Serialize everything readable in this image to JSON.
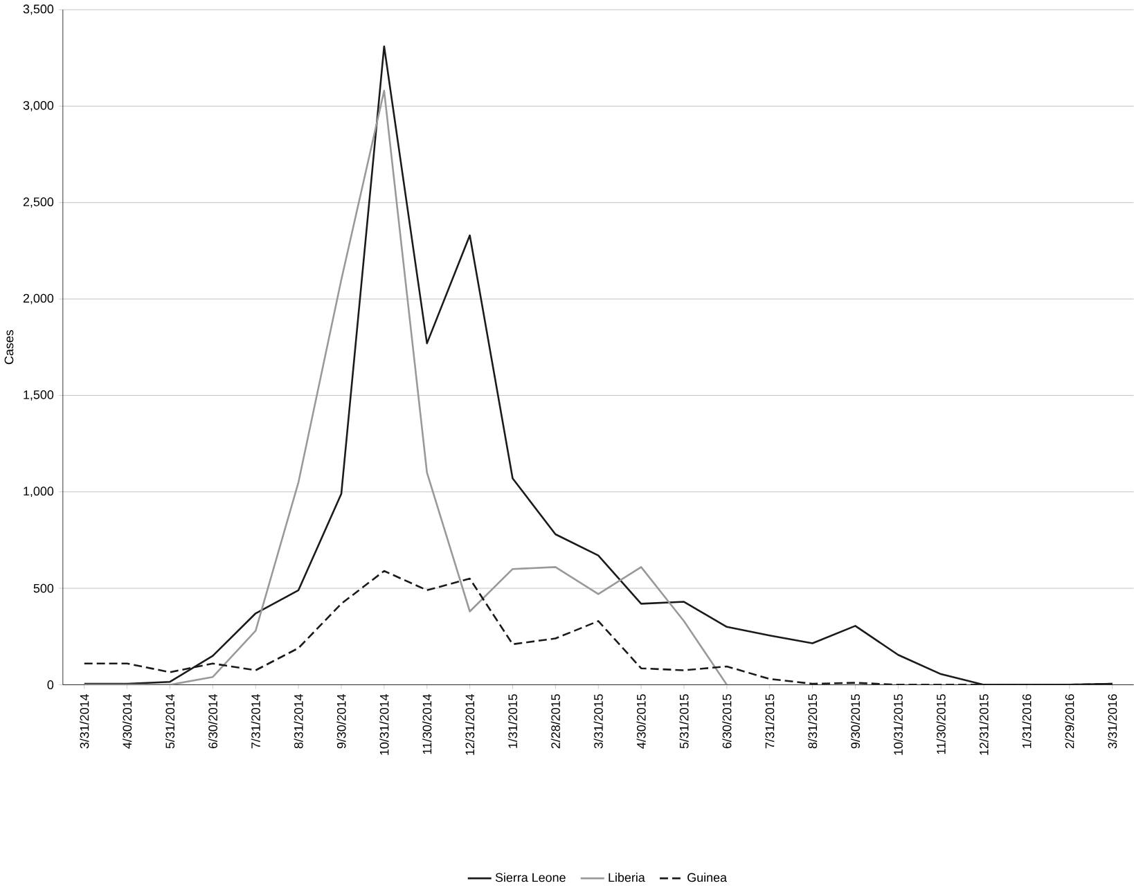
{
  "chart_data": {
    "type": "line",
    "ylabel": "Cases",
    "categories": [
      "3/31/2014",
      "4/30/2014",
      "5/31/2014",
      "6/30/2014",
      "7/31/2014",
      "8/31/2014",
      "9/30/2014",
      "10/31/2014",
      "11/30/2014",
      "12/31/2014",
      "1/31/2015",
      "2/28/2015",
      "3/31/2015",
      "4/30/2015",
      "5/31/2015",
      "6/30/2015",
      "7/31/2015",
      "8/31/2015",
      "9/30/2015",
      "10/31/2015",
      "11/30/2015",
      "12/31/2015",
      "1/31/2016",
      "2/29/2016",
      "3/31/2016"
    ],
    "series": [
      {
        "name": "Sierra Leone",
        "color": "#1a1a1a",
        "line_style": "solid",
        "values": [
          5,
          5,
          15,
          150,
          370,
          490,
          990,
          3310,
          1770,
          2330,
          1070,
          780,
          670,
          420,
          430,
          300,
          255,
          215,
          305,
          155,
          55,
          0,
          0,
          0,
          5
        ]
      },
      {
        "name": "Liberia",
        "color": "#999999",
        "line_style": "solid",
        "values": [
          0,
          0,
          0,
          40,
          280,
          1050,
          2100,
          3080,
          1100,
          380,
          600,
          610,
          470,
          610,
          330,
          0,
          null,
          null,
          null,
          null,
          null,
          null,
          null,
          null,
          null
        ]
      },
      {
        "name": "Guinea",
        "color": "#1a1a1a",
        "line_style": "dashed",
        "values": [
          110,
          110,
          65,
          110,
          75,
          190,
          420,
          590,
          490,
          550,
          210,
          240,
          330,
          85,
          75,
          95,
          30,
          5,
          10,
          0,
          0,
          0,
          0,
          0,
          5
        ]
      }
    ],
    "ylim": [
      0,
      3500
    ],
    "yticks": [
      {
        "value": 0,
        "label": "0"
      },
      {
        "value": 500,
        "label": "500"
      },
      {
        "value": 1000,
        "label": "1,000"
      },
      {
        "value": 1500,
        "label": "1,500"
      },
      {
        "value": 2000,
        "label": "2,000"
      },
      {
        "value": 2500,
        "label": "2,500"
      },
      {
        "value": 3000,
        "label": "3,000"
      },
      {
        "value": 3500,
        "label": "3,500"
      }
    ],
    "grid": "y",
    "legend": "bottom",
    "marker": "none"
  }
}
